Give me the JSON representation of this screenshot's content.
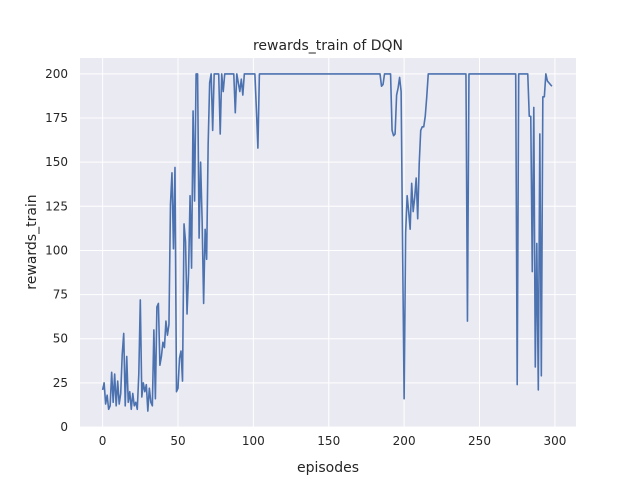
{
  "chart_data": {
    "type": "line",
    "title": "rewards_train of DQN",
    "xlabel": "episodes",
    "ylabel": "rewards_train",
    "xlim": [
      -15,
      314
    ],
    "ylim": [
      0,
      209
    ],
    "xticks": [
      0,
      50,
      100,
      150,
      200,
      250,
      300
    ],
    "yticks": [
      0,
      25,
      50,
      75,
      100,
      125,
      150,
      175,
      200
    ],
    "grid": true,
    "background_color": "#eaeaf2",
    "line_color": "#4c72b0",
    "series": [
      {
        "values": [
          [
            0,
            21
          ],
          [
            1,
            25
          ],
          [
            2,
            13
          ],
          [
            3,
            18
          ],
          [
            4,
            10
          ],
          [
            5,
            12
          ],
          [
            6,
            31
          ],
          [
            7,
            14
          ],
          [
            8,
            30
          ],
          [
            9,
            12
          ],
          [
            10,
            26
          ],
          [
            11,
            13
          ],
          [
            12,
            19
          ],
          [
            13,
            41
          ],
          [
            14,
            53
          ],
          [
            15,
            12
          ],
          [
            16,
            40
          ],
          [
            17,
            14
          ],
          [
            18,
            20
          ],
          [
            19,
            10
          ],
          [
            20,
            19
          ],
          [
            21,
            12
          ],
          [
            22,
            14
          ],
          [
            23,
            10
          ],
          [
            24,
            30
          ],
          [
            25,
            72
          ],
          [
            26,
            17
          ],
          [
            27,
            25
          ],
          [
            28,
            20
          ],
          [
            29,
            24
          ],
          [
            30,
            9
          ],
          [
            31,
            22
          ],
          [
            32,
            14
          ],
          [
            33,
            12
          ],
          [
            34,
            55
          ],
          [
            35,
            16
          ],
          [
            36,
            68
          ],
          [
            37,
            70
          ],
          [
            38,
            35
          ],
          [
            39,
            40
          ],
          [
            40,
            48
          ],
          [
            41,
            45
          ],
          [
            42,
            60
          ],
          [
            43,
            52
          ],
          [
            44,
            58
          ],
          [
            45,
            126
          ],
          [
            46,
            144
          ],
          [
            47,
            101
          ],
          [
            48,
            147
          ],
          [
            49,
            20
          ],
          [
            50,
            22
          ],
          [
            51,
            39
          ],
          [
            52,
            43
          ],
          [
            53,
            26
          ],
          [
            54,
            115
          ],
          [
            55,
            105
          ],
          [
            56,
            64
          ],
          [
            57,
            87
          ],
          [
            58,
            131
          ],
          [
            59,
            90
          ],
          [
            60,
            179
          ],
          [
            61,
            128
          ],
          [
            62,
            200
          ],
          [
            63,
            200
          ],
          [
            64,
            107
          ],
          [
            65,
            150
          ],
          [
            66,
            117
          ],
          [
            67,
            70
          ],
          [
            68,
            112
          ],
          [
            69,
            95
          ],
          [
            70,
            160
          ],
          [
            71,
            195
          ],
          [
            72,
            200
          ],
          [
            73,
            168
          ],
          [
            74,
            200
          ],
          [
            75,
            200
          ],
          [
            76,
            200
          ],
          [
            77,
            200
          ],
          [
            78,
            166
          ],
          [
            79,
            200
          ],
          [
            80,
            190
          ],
          [
            81,
            200
          ],
          [
            82,
            200
          ],
          [
            83,
            200
          ],
          [
            84,
            200
          ],
          [
            85,
            200
          ],
          [
            86,
            200
          ],
          [
            87,
            200
          ],
          [
            88,
            178
          ],
          [
            89,
            200
          ],
          [
            90,
            195
          ],
          [
            91,
            190
          ],
          [
            92,
            197
          ],
          [
            93,
            188
          ],
          [
            94,
            200
          ],
          [
            95,
            200
          ],
          [
            96,
            200
          ],
          [
            97,
            200
          ],
          [
            98,
            200
          ],
          [
            99,
            200
          ],
          [
            100,
            200
          ],
          [
            101,
            200
          ],
          [
            102,
            180
          ],
          [
            103,
            158
          ],
          [
            104,
            200
          ],
          [
            105,
            200
          ],
          [
            110,
            200
          ],
          [
            120,
            200
          ],
          [
            130,
            200
          ],
          [
            140,
            200
          ],
          [
            150,
            200
          ],
          [
            160,
            200
          ],
          [
            170,
            200
          ],
          [
            180,
            200
          ],
          [
            184,
            200
          ],
          [
            185,
            193
          ],
          [
            186,
            194
          ],
          [
            187,
            200
          ],
          [
            188,
            200
          ],
          [
            189,
            200
          ],
          [
            190,
            200
          ],
          [
            191,
            200
          ],
          [
            192,
            168
          ],
          [
            193,
            165
          ],
          [
            194,
            166
          ],
          [
            195,
            188
          ],
          [
            196,
            192
          ],
          [
            197,
            198
          ],
          [
            198,
            190
          ],
          [
            199,
            100
          ],
          [
            200,
            16
          ],
          [
            201,
            110
          ],
          [
            202,
            131
          ],
          [
            203,
            122
          ],
          [
            204,
            112
          ],
          [
            205,
            138
          ],
          [
            206,
            122
          ],
          [
            207,
            130
          ],
          [
            208,
            141
          ],
          [
            209,
            118
          ],
          [
            210,
            149
          ],
          [
            211,
            168
          ],
          [
            212,
            170
          ],
          [
            213,
            170
          ],
          [
            214,
            176
          ],
          [
            215,
            187
          ],
          [
            216,
            200
          ],
          [
            217,
            200
          ],
          [
            218,
            200
          ],
          [
            219,
            200
          ],
          [
            220,
            200
          ],
          [
            230,
            200
          ],
          [
            240,
            200
          ],
          [
            241,
            200
          ],
          [
            242,
            60
          ],
          [
            243,
            200
          ],
          [
            244,
            200
          ],
          [
            250,
            200
          ],
          [
            260,
            200
          ],
          [
            270,
            200
          ],
          [
            274,
            200
          ],
          [
            275,
            24
          ],
          [
            276,
            200
          ],
          [
            277,
            200
          ],
          [
            278,
            200
          ],
          [
            279,
            200
          ],
          [
            280,
            200
          ],
          [
            281,
            200
          ],
          [
            282,
            200
          ],
          [
            283,
            176
          ],
          [
            284,
            176
          ],
          [
            285,
            88
          ],
          [
            286,
            181
          ],
          [
            287,
            34
          ],
          [
            288,
            104
          ],
          [
            289,
            21
          ],
          [
            290,
            166
          ],
          [
            291,
            29
          ],
          [
            292,
            187
          ],
          [
            293,
            187
          ],
          [
            294,
            200
          ],
          [
            295,
            196
          ],
          [
            296,
            195
          ],
          [
            297,
            194
          ],
          [
            298,
            193
          ]
        ]
      }
    ]
  }
}
